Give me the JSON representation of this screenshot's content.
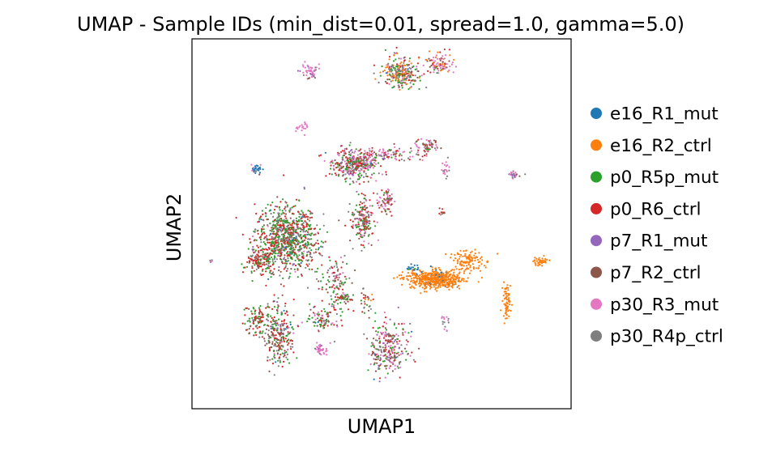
{
  "chart_data": {
    "type": "scatter",
    "title": "UMAP - Sample IDs (min_dist=0.01, spread=1.0, gamma=5.0)",
    "xlabel": "UMAP1",
    "ylabel": "UMAP2",
    "xlim": [
      0,
      100
    ],
    "ylim": [
      0,
      100
    ],
    "grid": false,
    "ticks": false,
    "legend_placement": "right",
    "series": [
      {
        "name": "e16_R1_mut",
        "color": "#1f77b4"
      },
      {
        "name": "e16_R2_ctrl",
        "color": "#ff7f0e"
      },
      {
        "name": "p0_R5p_mut",
        "color": "#2ca02c"
      },
      {
        "name": "p0_R6_ctrl",
        "color": "#d62728"
      },
      {
        "name": "p7_R1_mut",
        "color": "#9467bd"
      },
      {
        "name": "p7_R2_ctrl",
        "color": "#8c564b"
      },
      {
        "name": "p30_R3_mut",
        "color": "#e377c2"
      },
      {
        "name": "p30_R4p_ctrl",
        "color": "#7f7f7f"
      }
    ],
    "clusters": [
      {
        "x": 25,
        "y": 46,
        "rx": 8,
        "ry": 9,
        "n": 900,
        "mix": [
          0.02,
          0.0,
          0.38,
          0.3,
          0.05,
          0.08,
          0.02,
          0.15
        ]
      },
      {
        "x": 18,
        "y": 40,
        "rx": 4,
        "ry": 3,
        "n": 120,
        "mix": [
          0.0,
          0.0,
          0.3,
          0.55,
          0.0,
          0.05,
          0.0,
          0.1
        ]
      },
      {
        "x": 43,
        "y": 66,
        "rx": 6,
        "ry": 4,
        "n": 380,
        "mix": [
          0.02,
          0.0,
          0.2,
          0.2,
          0.08,
          0.1,
          0.25,
          0.15
        ]
      },
      {
        "x": 53,
        "y": 69,
        "rx": 8,
        "ry": 2,
        "n": 90,
        "mix": [
          0.0,
          0.0,
          0.1,
          0.15,
          0.05,
          0.1,
          0.45,
          0.15
        ]
      },
      {
        "x": 64,
        "y": 35,
        "rx": 7,
        "ry": 2.5,
        "n": 520,
        "mix": [
          0.04,
          0.94,
          0.0,
          0.0,
          0.0,
          0.0,
          0.0,
          0.02
        ]
      },
      {
        "x": 73,
        "y": 40,
        "rx": 4,
        "ry": 3,
        "n": 120,
        "mix": [
          0.0,
          1.0,
          0.0,
          0.0,
          0.0,
          0.0,
          0.0,
          0.0
        ]
      },
      {
        "x": 83,
        "y": 29,
        "rx": 1,
        "ry": 5,
        "n": 70,
        "mix": [
          0.0,
          1.0,
          0.0,
          0.0,
          0.0,
          0.0,
          0.0,
          0.0
        ]
      },
      {
        "x": 92,
        "y": 40,
        "rx": 2,
        "ry": 1,
        "n": 40,
        "mix": [
          0.0,
          1.0,
          0.0,
          0.0,
          0.0,
          0.0,
          0.0,
          0.0
        ]
      },
      {
        "x": 55,
        "y": 91,
        "rx": 5,
        "ry": 4,
        "n": 260,
        "mix": [
          0.02,
          0.2,
          0.2,
          0.15,
          0.05,
          0.1,
          0.13,
          0.15
        ]
      },
      {
        "x": 65,
        "y": 93,
        "rx": 4,
        "ry": 3,
        "n": 90,
        "mix": [
          0.0,
          0.25,
          0.05,
          0.25,
          0.0,
          0.1,
          0.35,
          0.0
        ]
      },
      {
        "x": 31,
        "y": 91,
        "rx": 2,
        "ry": 2,
        "n": 50,
        "mix": [
          0.0,
          0.0,
          0.0,
          0.0,
          0.05,
          0.1,
          0.75,
          0.1
        ]
      },
      {
        "x": 45,
        "y": 51,
        "rx": 3,
        "ry": 6,
        "n": 180,
        "mix": [
          0.0,
          0.0,
          0.25,
          0.3,
          0.05,
          0.15,
          0.1,
          0.15
        ]
      },
      {
        "x": 51,
        "y": 56,
        "rx": 2,
        "ry": 3,
        "n": 70,
        "mix": [
          0.0,
          0.0,
          0.1,
          0.2,
          0.0,
          0.2,
          0.3,
          0.2
        ]
      },
      {
        "x": 23,
        "y": 20,
        "rx": 4,
        "ry": 8,
        "n": 260,
        "mix": [
          0.02,
          0.0,
          0.25,
          0.25,
          0.05,
          0.2,
          0.03,
          0.2
        ]
      },
      {
        "x": 17,
        "y": 24,
        "rx": 3,
        "ry": 4,
        "n": 90,
        "mix": [
          0.0,
          0.0,
          0.3,
          0.3,
          0.0,
          0.2,
          0.0,
          0.2
        ]
      },
      {
        "x": 34,
        "y": 24,
        "rx": 4,
        "ry": 3,
        "n": 80,
        "mix": [
          0.05,
          0.05,
          0.2,
          0.2,
          0.0,
          0.2,
          0.2,
          0.1
        ]
      },
      {
        "x": 52,
        "y": 16,
        "rx": 5,
        "ry": 8,
        "n": 260,
        "mix": [
          0.02,
          0.0,
          0.15,
          0.2,
          0.08,
          0.2,
          0.2,
          0.15
        ]
      },
      {
        "x": 34,
        "y": 16,
        "rx": 2,
        "ry": 2,
        "n": 40,
        "mix": [
          0.0,
          0.0,
          0.0,
          0.0,
          0.1,
          0.0,
          0.8,
          0.1
        ]
      },
      {
        "x": 62,
        "y": 71,
        "rx": 3,
        "ry": 2,
        "n": 60,
        "mix": [
          0.0,
          0.0,
          0.15,
          0.2,
          0.0,
          0.25,
          0.3,
          0.1
        ]
      },
      {
        "x": 17,
        "y": 65,
        "rx": 1.5,
        "ry": 1.5,
        "n": 30,
        "mix": [
          0.75,
          0.0,
          0.0,
          0.0,
          0.05,
          0.05,
          0.1,
          0.05
        ]
      },
      {
        "x": 29,
        "y": 76,
        "rx": 1.5,
        "ry": 2,
        "n": 20,
        "mix": [
          0.0,
          0.0,
          0.0,
          0.0,
          0.0,
          0.0,
          1.0,
          0.0
        ]
      },
      {
        "x": 85,
        "y": 63,
        "rx": 1.5,
        "ry": 1,
        "n": 25,
        "mix": [
          0.0,
          0.0,
          0.0,
          0.0,
          0.1,
          0.1,
          0.6,
          0.2
        ]
      },
      {
        "x": 67,
        "y": 65,
        "rx": 1,
        "ry": 2,
        "n": 20,
        "mix": [
          0.0,
          0.0,
          0.0,
          0.0,
          0.0,
          0.0,
          0.8,
          0.2
        ]
      },
      {
        "x": 40,
        "y": 30,
        "rx": 2,
        "ry": 1.5,
        "n": 40,
        "mix": [
          0.0,
          0.0,
          0.3,
          0.2,
          0.0,
          0.2,
          0.1,
          0.2
        ]
      },
      {
        "x": 38,
        "y": 33,
        "rx": 4,
        "ry": 10,
        "n": 120,
        "mix": [
          0.0,
          0.0,
          0.2,
          0.3,
          0.0,
          0.2,
          0.1,
          0.2
        ]
      },
      {
        "x": 46,
        "y": 29,
        "rx": 2,
        "ry": 3,
        "n": 30,
        "mix": [
          0.0,
          0.1,
          0.2,
          0.3,
          0.0,
          0.2,
          0.0,
          0.2
        ]
      },
      {
        "x": 67,
        "y": 23,
        "rx": 1,
        "ry": 2,
        "n": 15,
        "mix": [
          0.0,
          0.0,
          0.0,
          0.0,
          0.0,
          0.0,
          0.5,
          0.5
        ]
      },
      {
        "x": 66,
        "y": 53,
        "rx": 1,
        "ry": 1,
        "n": 10,
        "mix": [
          0.0,
          0.0,
          0.2,
          0.2,
          0.0,
          0.2,
          0.2,
          0.2
        ]
      },
      {
        "x": 58,
        "y": 38,
        "rx": 2,
        "ry": 1,
        "n": 20,
        "mix": [
          0.7,
          0.0,
          0.1,
          0.1,
          0.0,
          0.1,
          0.0,
          0.0
        ]
      },
      {
        "x": 5,
        "y": 40,
        "rx": 0.5,
        "ry": 0.5,
        "n": 5,
        "mix": [
          0.0,
          0.0,
          0.0,
          0.0,
          0.0,
          0.0,
          0.5,
          0.5
        ]
      }
    ]
  }
}
